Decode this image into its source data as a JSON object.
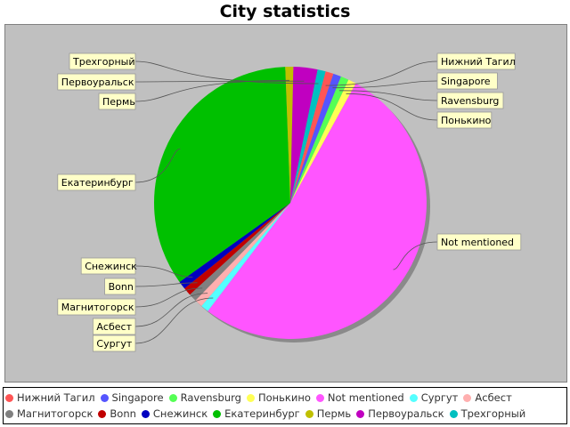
{
  "chart_data": {
    "type": "pie",
    "title": "City statistics",
    "slices": [
      {
        "label": "Нижний Тагил",
        "value": 1,
        "color": "#ff5555"
      },
      {
        "label": "Singapore",
        "value": 1,
        "color": "#5555ff"
      },
      {
        "label": "Ravensburg",
        "value": 1,
        "color": "#55ff55"
      },
      {
        "label": "Понькино",
        "value": 1,
        "color": "#ffff55"
      },
      {
        "label": "Not mentioned",
        "value": 55,
        "color": "#ff55ff"
      },
      {
        "label": "Сургут",
        "value": 1,
        "color": "#55ffff"
      },
      {
        "label": "Асбест",
        "value": 1,
        "color": "#ffafaf"
      },
      {
        "label": "Магнитогорск",
        "value": 1,
        "color": "#808080"
      },
      {
        "label": "Bonn",
        "value": 1,
        "color": "#c00000"
      },
      {
        "label": "Снежинск",
        "value": 1,
        "color": "#0000c0"
      },
      {
        "label": "Екатеринбург",
        "value": 36,
        "color": "#00c000"
      },
      {
        "label": "Пермь",
        "value": 1,
        "color": "#c0c000"
      },
      {
        "label": "Первоуральск",
        "value": 3,
        "color": "#c000c0"
      },
      {
        "label": "Трехгорный",
        "value": 1,
        "color": "#00c0c0"
      }
    ]
  }
}
